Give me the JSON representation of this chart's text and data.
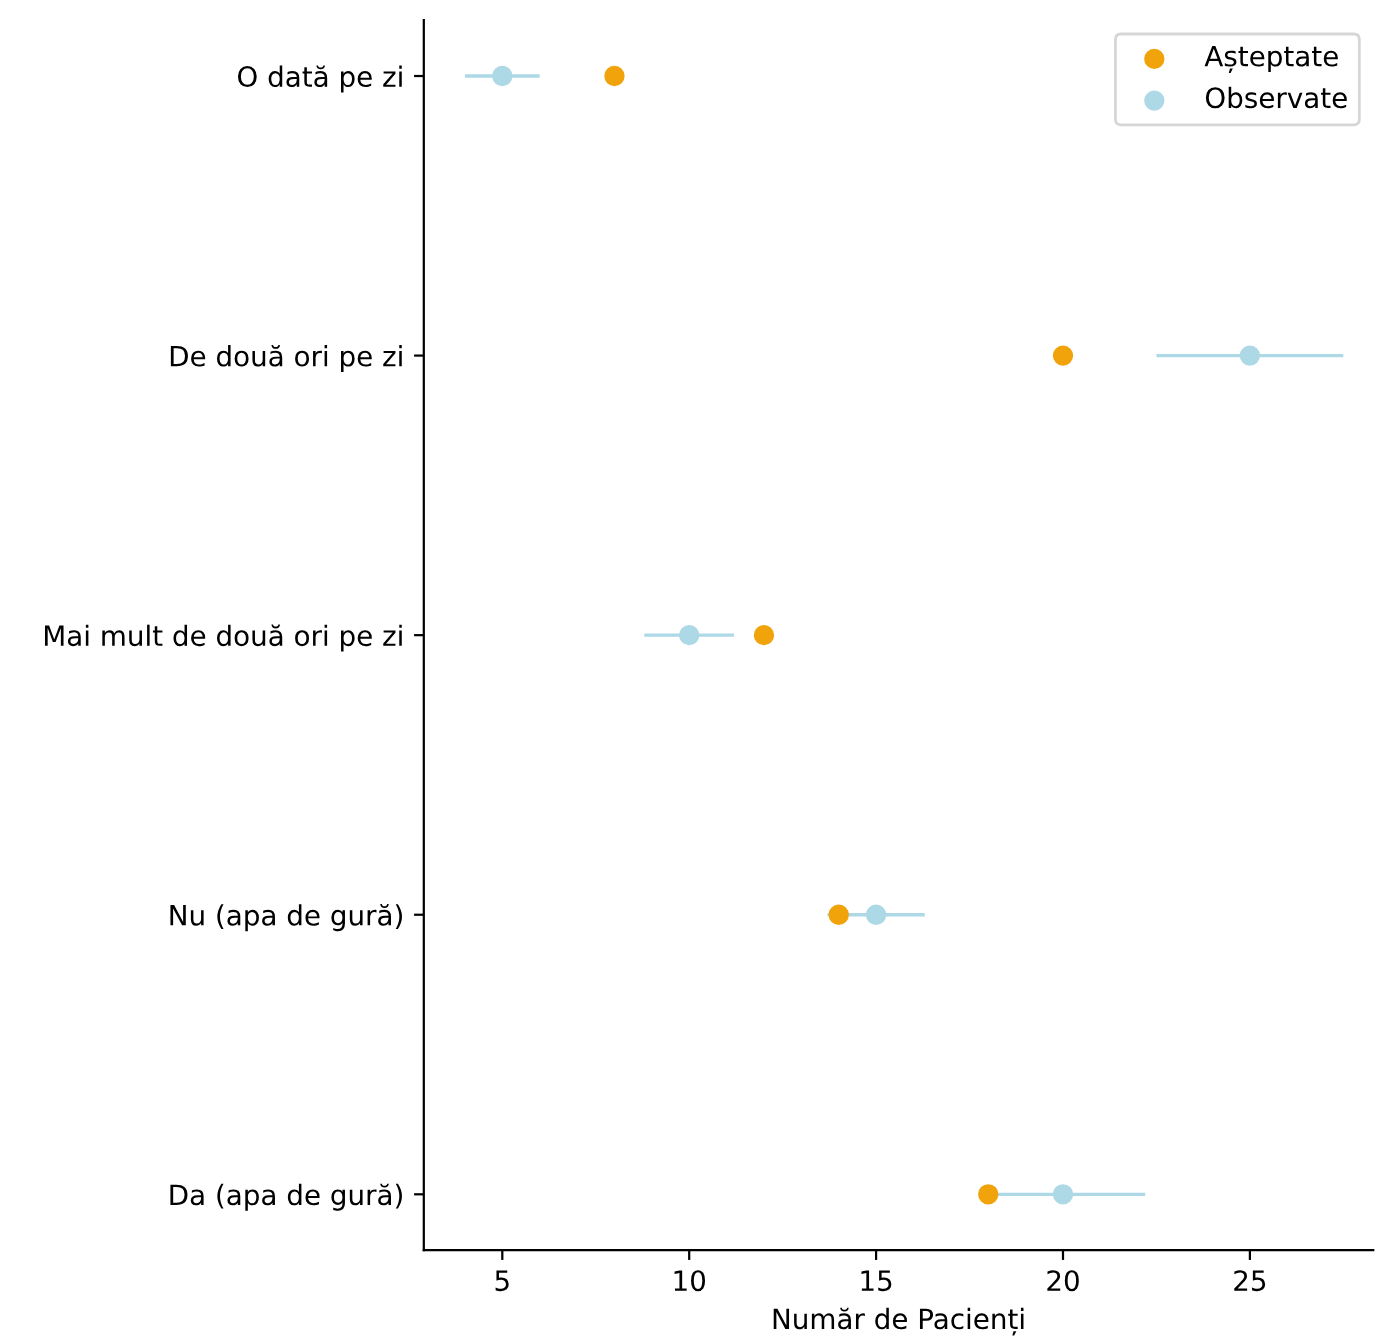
{
  "chart_data": {
    "type": "scatter",
    "orientation": "horizontal",
    "xlabel": "Număr de Pacienți",
    "categories": [
      "O dată pe zi",
      "De două ori pe zi",
      "Mai mult de două ori pe zi",
      "Nu (apa de gură)",
      "Da (apa de gură)"
    ],
    "series": [
      {
        "name": "Așteptate",
        "color": "#f0a30a",
        "values": [
          8,
          20,
          12,
          14,
          18
        ]
      },
      {
        "name": "Observate",
        "color": "#add8e6",
        "values": [
          5,
          25,
          10,
          15,
          20
        ],
        "errors": [
          1,
          2.5,
          1.2,
          1.3,
          2.2
        ]
      }
    ],
    "xlim": [
      2.9,
      28.3
    ],
    "xticks": [
      5,
      10,
      15,
      20,
      25
    ],
    "marker": "circle",
    "legend": "top right",
    "grid": false
  }
}
